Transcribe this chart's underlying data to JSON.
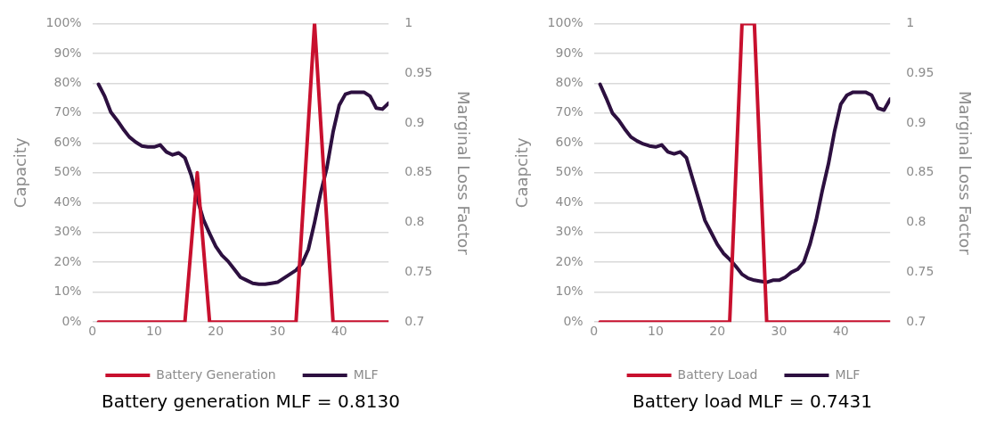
{
  "chart_data": [
    {
      "type": "line",
      "ylabel": "Capacity",
      "y2label": "Marginal Loss Factor",
      "annotations": [
        "Battery generation MLF = 0.8130"
      ],
      "xlim": [
        0,
        48
      ],
      "xticks": [
        0,
        10,
        20,
        30,
        40
      ],
      "ylim": [
        0,
        100
      ],
      "yticks": [
        {
          "value": 0,
          "label": "0%"
        },
        {
          "value": 10,
          "label": "10%"
        },
        {
          "value": 20,
          "label": "20%"
        },
        {
          "value": 30,
          "label": "30%"
        },
        {
          "value": 40,
          "label": "40%"
        },
        {
          "value": 50,
          "label": "50%"
        },
        {
          "value": 60,
          "label": "60%"
        },
        {
          "value": 70,
          "label": "70%"
        },
        {
          "value": 80,
          "label": "80%"
        },
        {
          "value": 90,
          "label": "90%"
        },
        {
          "value": 100,
          "label": "100%"
        }
      ],
      "y2lim": [
        0.7,
        1
      ],
      "y2ticks": [
        0.7,
        0.75,
        0.8,
        0.85,
        0.9,
        0.95,
        1
      ],
      "grid": "y",
      "legend": "bottom",
      "marker": "none",
      "x": [
        1,
        2,
        3,
        4,
        5,
        6,
        7,
        8,
        9,
        10,
        11,
        12,
        13,
        14,
        15,
        16,
        17,
        18,
        19,
        20,
        21,
        22,
        23,
        24,
        25,
        26,
        27,
        28,
        29,
        30,
        31,
        32,
        33,
        34,
        35,
        36,
        37,
        38,
        39,
        40,
        41,
        42,
        43,
        44,
        45,
        46,
        47,
        48
      ],
      "series": [
        {
          "name": "Battery Generation",
          "color": "#c8102e",
          "x": [
            1,
            15,
            17,
            19,
            33,
            36,
            39,
            48
          ],
          "values": [
            0,
            0,
            50,
            0,
            0,
            100,
            0,
            0
          ]
        },
        {
          "name": "MLF",
          "color": "#2d1040",
          "axis": "y2",
          "values": [
            0.939,
            0.927,
            0.911,
            0.903,
            0.894,
            0.886,
            0.881,
            0.877,
            0.876,
            0.876,
            0.878,
            0.871,
            0.868,
            0.87,
            0.865,
            0.848,
            0.824,
            0.803,
            0.789,
            0.776,
            0.767,
            0.761,
            0.753,
            0.745,
            0.742,
            0.739,
            0.738,
            0.738,
            0.739,
            0.74,
            0.744,
            0.748,
            0.752,
            0.759,
            0.773,
            0.8,
            0.83,
            0.855,
            0.891,
            0.918,
            0.929,
            0.931,
            0.931,
            0.931,
            0.927,
            0.915,
            0.914,
            0.92
          ]
        }
      ]
    },
    {
      "type": "line",
      "ylabel": "Caapcity",
      "y2label": "Marginal Loss Factor",
      "annotations": [
        "Battery load MLF = 0.7431"
      ],
      "xlim": [
        0,
        48
      ],
      "xticks": [
        0,
        10,
        20,
        30,
        40
      ],
      "ylim": [
        0,
        100
      ],
      "yticks": [
        {
          "value": 0,
          "label": "0%"
        },
        {
          "value": 10,
          "label": "10%"
        },
        {
          "value": 20,
          "label": "20%"
        },
        {
          "value": 30,
          "label": "30%"
        },
        {
          "value": 40,
          "label": "40%"
        },
        {
          "value": 50,
          "label": "50%"
        },
        {
          "value": 60,
          "label": "60%"
        },
        {
          "value": 70,
          "label": "70%"
        },
        {
          "value": 80,
          "label": "80%"
        },
        {
          "value": 90,
          "label": "90%"
        },
        {
          "value": 100,
          "label": "100%"
        }
      ],
      "y2lim": [
        0.7,
        1
      ],
      "y2ticks": [
        0.7,
        0.75,
        0.8,
        0.85,
        0.9,
        0.95,
        1
      ],
      "grid": "y",
      "legend": "bottom",
      "marker": "none",
      "x": [
        1,
        2,
        3,
        4,
        5,
        6,
        7,
        8,
        9,
        10,
        11,
        12,
        13,
        14,
        15,
        16,
        17,
        18,
        19,
        20,
        21,
        22,
        23,
        24,
        25,
        26,
        27,
        28,
        29,
        30,
        31,
        32,
        33,
        34,
        35,
        36,
        37,
        38,
        39,
        40,
        41,
        42,
        43,
        44,
        45,
        46,
        47,
        48
      ],
      "series": [
        {
          "name": "Battery Load",
          "color": "#c8102e",
          "x": [
            1,
            22,
            24,
            26,
            28,
            48
          ],
          "values": [
            0,
            0,
            100,
            100,
            0,
            0
          ]
        },
        {
          "name": "MLF",
          "color": "#2d1040",
          "axis": "y2",
          "values": [
            0.939,
            0.925,
            0.91,
            0.903,
            0.894,
            0.886,
            0.882,
            0.879,
            0.877,
            0.876,
            0.878,
            0.871,
            0.869,
            0.871,
            0.865,
            0.844,
            0.823,
            0.802,
            0.79,
            0.778,
            0.769,
            0.763,
            0.756,
            0.748,
            0.744,
            0.742,
            0.741,
            0.74,
            0.742,
            0.742,
            0.745,
            0.75,
            0.753,
            0.76,
            0.778,
            0.802,
            0.832,
            0.859,
            0.892,
            0.919,
            0.928,
            0.931,
            0.931,
            0.931,
            0.928,
            0.915,
            0.913,
            0.924
          ]
        }
      ]
    }
  ]
}
